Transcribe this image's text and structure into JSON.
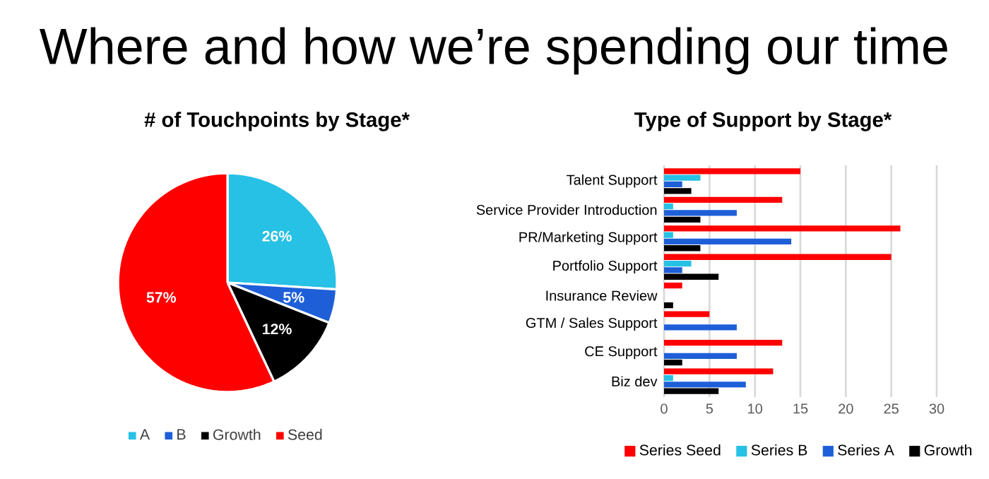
{
  "chart_data": [
    {
      "type": "pie",
      "title": "# of Touchpoints by Stage*",
      "annotations": [
        "Where and how we’re spending our time"
      ],
      "categories": [
        "A",
        "B",
        "Growth",
        "Seed"
      ],
      "values": [
        26,
        5,
        12,
        57
      ],
      "value_labels": [
        "26%",
        "5%",
        "12%",
        "57%"
      ],
      "colors": [
        "#26c1e4",
        "#1e5fd8",
        "#000000",
        "#ff0000"
      ],
      "legend": "bottom"
    },
    {
      "type": "bar",
      "orientation": "horizontal",
      "title": "Type of Support by Stage*",
      "categories": [
        "Talent Support",
        "Service Provider Introduction",
        "PR/Marketing Support",
        "Portfolio Support",
        "Insurance Review",
        "GTM / Sales Support",
        "CE Support",
        "Biz dev"
      ],
      "series": [
        {
          "name": "Series Seed",
          "color": "#ff0000",
          "values": [
            15,
            13,
            26,
            25,
            2,
            5,
            13,
            12
          ]
        },
        {
          "name": "Series B",
          "color": "#26c1e4",
          "values": [
            4,
            1,
            1,
            3,
            null,
            null,
            null,
            1
          ]
        },
        {
          "name": "Series A",
          "color": "#1e5fd8",
          "values": [
            2,
            8,
            14,
            2,
            null,
            8,
            8,
            9
          ]
        },
        {
          "name": "Growth",
          "color": "#000000",
          "values": [
            3,
            4,
            4,
            6,
            1,
            null,
            2,
            6
          ]
        }
      ],
      "xlim": [
        0,
        30
      ],
      "xticks": [
        0,
        5,
        10,
        15,
        20,
        25,
        30
      ],
      "grid": "x",
      "legend": "bottom"
    }
  ]
}
